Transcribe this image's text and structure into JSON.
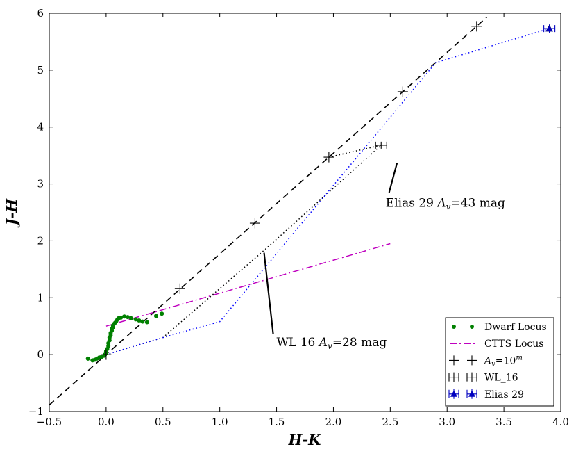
{
  "chart_data": {
    "type": "scatter",
    "xlabel": "H-K",
    "ylabel": "J-H",
    "xlim": [
      -0.5,
      4.0
    ],
    "ylim": [
      -1,
      6
    ],
    "xticks": [
      "−0.5",
      "0.0",
      "0.5",
      "1.0",
      "1.5",
      "2.0",
      "2.5",
      "3.0",
      "3.5",
      "4.0"
    ],
    "yticks": [
      "−1",
      "0",
      "1",
      "2",
      "3",
      "4",
      "5",
      "6"
    ],
    "series": [
      {
        "name": "Dwarf Locus",
        "color": "#008000",
        "x": [
          -0.16,
          -0.12,
          -0.1,
          -0.08,
          -0.06,
          -0.04,
          -0.02,
          -0.01,
          0.0,
          0.0,
          0.01,
          0.02,
          0.02,
          0.03,
          0.03,
          0.04,
          0.04,
          0.05,
          0.05,
          0.06,
          0.06,
          0.07,
          0.08,
          0.09,
          0.1,
          0.11,
          0.13,
          0.16,
          0.19,
          0.22,
          0.26,
          0.29,
          0.32,
          0.36,
          0.44,
          0.49
        ],
        "y": [
          -0.07,
          -0.1,
          -0.09,
          -0.07,
          -0.05,
          -0.04,
          -0.02,
          0.0,
          0.03,
          0.06,
          0.1,
          0.15,
          0.2,
          0.25,
          0.3,
          0.34,
          0.38,
          0.42,
          0.45,
          0.48,
          0.51,
          0.54,
          0.56,
          0.59,
          0.62,
          0.64,
          0.65,
          0.67,
          0.66,
          0.64,
          0.62,
          0.6,
          0.58,
          0.57,
          0.68,
          0.72
        ]
      },
      {
        "name": "CTTS Locus",
        "color": "#bf00bf",
        "x": [
          0.0,
          2.5
        ],
        "y": [
          0.5,
          1.95
        ]
      },
      {
        "name": "Av=10m",
        "color": "#000000",
        "x": [
          0.0,
          0.65,
          1.31,
          1.96,
          2.61,
          3.26
        ],
        "y": [
          0.0,
          1.16,
          2.31,
          3.47,
          4.62,
          5.77
        ]
      },
      {
        "name": "WL_16",
        "color": "#000000",
        "x": [
          2.42
        ],
        "y": [
          3.68
        ]
      },
      {
        "name": "Elias 29",
        "color": "#0000bf",
        "x": [
          3.9
        ],
        "y": [
          5.73
        ]
      }
    ],
    "reddening_line": {
      "slope": 1.77,
      "x": [
        -0.5,
        3.35
      ],
      "y": [
        -0.885,
        5.93
      ]
    },
    "wl16_path": {
      "x": [
        0.0,
        0.5,
        1.4,
        2.42
      ],
      "y": [
        0.0,
        0.3,
        1.85,
        3.68
      ]
    },
    "wl16_segment": {
      "x": [
        1.96,
        2.42
      ],
      "y": [
        3.47,
        3.68
      ]
    },
    "elias29_path": {
      "x": [
        0.0,
        0.5,
        1.0,
        2.9,
        3.9
      ],
      "y": [
        0.0,
        0.3,
        0.58,
        5.13,
        5.73
      ]
    },
    "annotations": [
      {
        "id": "elias",
        "text": "Elias 29 ",
        "av_sym": "A",
        "av_sub": "v",
        "suffix": "=43 mag",
        "x": 2.46,
        "y": 2.6,
        "pointer_x": [
          2.49,
          2.56
        ],
        "pointer_y": [
          2.85,
          3.37
        ]
      },
      {
        "id": "wl",
        "text": "WL 16 ",
        "av_sym": "A",
        "av_sub": "v",
        "suffix": "=28 mag",
        "x": 1.5,
        "y": 0.15,
        "pointer_x": [
          1.39,
          1.47
        ],
        "pointer_y": [
          1.79,
          0.36
        ]
      }
    ],
    "legend": {
      "position": "lower-right",
      "entries": [
        {
          "label": "Dwarf Locus",
          "marker": "dot",
          "color": "#008000"
        },
        {
          "label": "CTTS Locus",
          "marker": "dashdot",
          "color": "#bf00bf"
        },
        {
          "label_main": "A",
          "label_sub": "v",
          "label_eq": "=10",
          "label_sup": "m",
          "marker": "plus",
          "color": "#000000"
        },
        {
          "label": "WL_16",
          "marker": "errorbar",
          "color": "#000000"
        },
        {
          "label": "Elias 29",
          "marker": "triangle-errorbar",
          "color": "#0000bf"
        }
      ]
    }
  }
}
